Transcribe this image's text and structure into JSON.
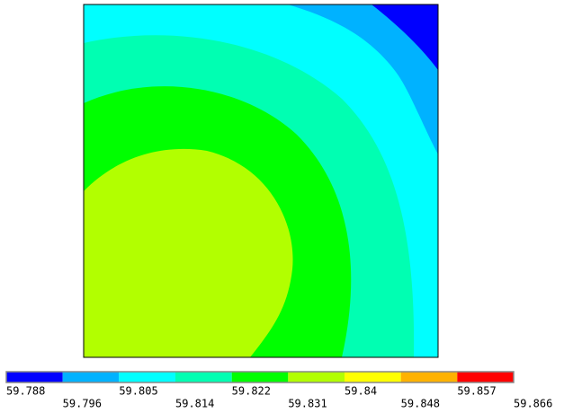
{
  "chart_data": {
    "type": "contour",
    "levels": [
      59.788,
      59.796,
      59.805,
      59.814,
      59.822,
      59.831,
      59.84,
      59.848,
      59.857,
      59.866
    ],
    "colors": [
      "#0000ff",
      "#00b2ff",
      "#00ffff",
      "#00ffb2",
      "#00ff00",
      "#b2ff00",
      "#ffff00",
      "#ffb200",
      "#ff0000"
    ]
  }
}
